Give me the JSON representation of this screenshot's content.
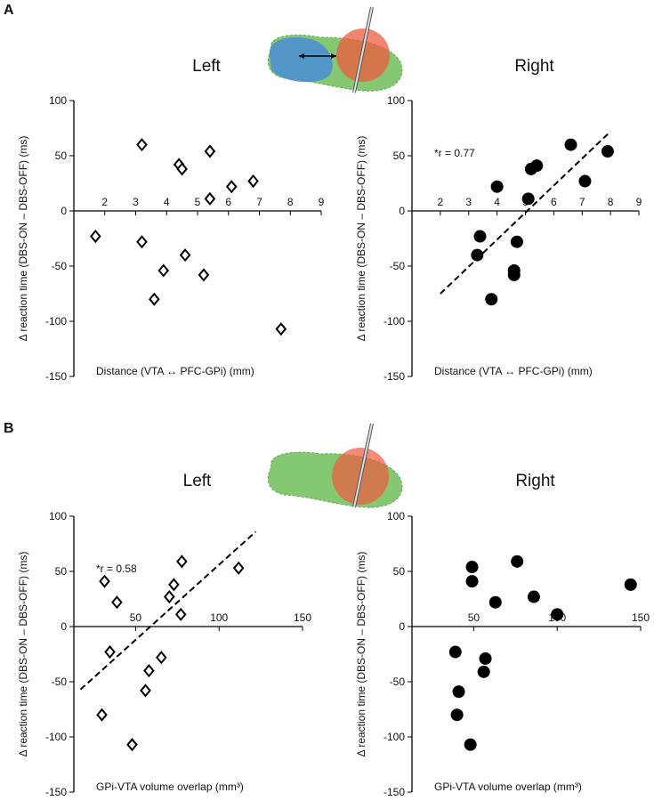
{
  "panel_labels": [
    "A",
    "B"
  ],
  "chart_data": [
    {
      "type": "scatter",
      "title": "Left",
      "marker": "diamond",
      "filled": false,
      "color": "#000000",
      "x_label": "Distance (VTA ↔ PFC-GPi) (mm)",
      "y_label": "Δ reaction time (DBS-ON – DBS-OFF) (ms)",
      "xlim": [
        1,
        9
      ],
      "xticks": [
        2,
        3,
        4,
        5,
        6,
        7,
        8,
        9
      ],
      "ylim": [
        -150,
        100
      ],
      "yticks": [
        -150,
        -100,
        -50,
        0,
        50,
        100
      ],
      "x": [
        1.7,
        3.2,
        4.4,
        4.5,
        5.4,
        5.4,
        6.1,
        6.8,
        3.2,
        3.9,
        4.6,
        3.6,
        5.2,
        7.7
      ],
      "values": [
        -23,
        60,
        42,
        38,
        54,
        11,
        22,
        27,
        -28,
        -54,
        -40,
        -80,
        -58,
        -107
      ]
    },
    {
      "type": "scatter",
      "title": "Right",
      "marker": "circle",
      "filled": true,
      "color": "#000000",
      "x_label": "Distance (VTA ↔ PFC-GPi) (mm)",
      "y_label": "Δ reaction time (DBS-ON – DBS-OFF) (ms)",
      "annotation": "*r = 0.77",
      "xlim": [
        1,
        9
      ],
      "xticks": [
        2,
        3,
        4,
        5,
        6,
        7,
        8,
        9
      ],
      "ylim": [
        -150,
        100
      ],
      "yticks": [
        -150,
        -100,
        -50,
        0,
        50,
        100
      ],
      "x": [
        4.0,
        6.6,
        7.9,
        7.1,
        5.2,
        5.4,
        5.1,
        3.4,
        3.3,
        4.7,
        4.6,
        4.6,
        3.8
      ],
      "values": [
        22,
        60,
        54,
        27,
        38,
        41,
        11,
        -23,
        -40,
        -28,
        -54,
        -58,
        -80
      ],
      "trend": {
        "x": [
          2,
          8
        ],
        "values": [
          -75,
          72
        ]
      }
    },
    {
      "type": "scatter",
      "title": "Left",
      "marker": "diamond",
      "filled": false,
      "color": "#000000",
      "x_label": "GPi-VTA volume overlap (mm³)",
      "y_label": "Δ reaction time (DBS-ON – DBS-OFF) (ms)",
      "annotation": "*r = 0.58",
      "xlim": [
        13,
        150
      ],
      "xticks": [
        50,
        100,
        150
      ],
      "ylim": [
        -150,
        100
      ],
      "yticks": [
        -150,
        -100,
        -50,
        0,
        50,
        100
      ],
      "x": [
        34.6,
        31.4,
        38.8,
        70.2,
        72.9,
        77.1,
        77.7,
        111.7,
        65.4,
        58,
        55.9,
        29.8,
        47.9
      ],
      "values": [
        -23,
        41,
        22,
        27,
        38,
        11,
        59,
        53,
        -28,
        -40,
        -58,
        -80,
        -107
      ],
      "trend": {
        "x": [
          17,
          122
        ],
        "values": [
          -57,
          86
        ]
      }
    },
    {
      "type": "scatter",
      "title": "Right",
      "marker": "circle",
      "filled": true,
      "color": "#000000",
      "x_label": "GPi-VTA volume overlap (mm³)",
      "y_label": "Δ reaction time (DBS-ON – DBS-OFF) (ms)",
      "xlim": [
        13,
        150
      ],
      "xticks": [
        50,
        100,
        150
      ],
      "ylim": [
        -150,
        100
      ],
      "yticks": [
        -150,
        -100,
        -50,
        0,
        50,
        100
      ],
      "x": [
        49,
        49,
        76,
        63,
        86,
        100,
        144,
        39,
        57,
        56,
        41,
        40,
        48
      ],
      "values": [
        54,
        41,
        59,
        22,
        27,
        11,
        38,
        -23,
        -29,
        -41,
        -59,
        -80,
        -107
      ]
    }
  ]
}
